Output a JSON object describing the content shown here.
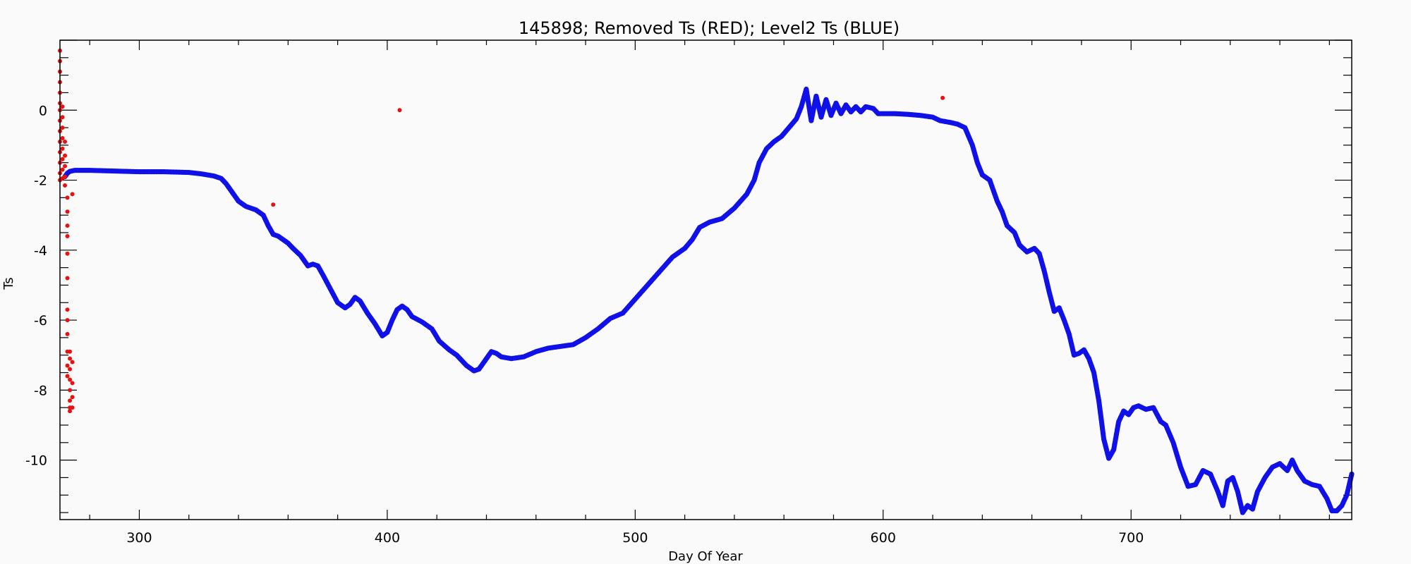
{
  "chart_data": {
    "type": "scatter",
    "title": "145898; Removed Ts (RED); Level2 Ts (BLUE)",
    "xlabel": "Day Of Year",
    "ylabel": "Ts",
    "xlim": [
      268,
      789
    ],
    "ylim": [
      -11.7,
      2.0
    ],
    "xticks": [
      300,
      400,
      500,
      600,
      700
    ],
    "yticks": [
      0,
      -2,
      -4,
      -6,
      -8,
      -10
    ],
    "grid": false,
    "legend": "none",
    "series": [
      {
        "color": "#1010e8",
        "points": [
          [
            270,
            -1.9
          ],
          [
            271,
            -1.8
          ],
          [
            272,
            -1.75
          ],
          [
            274,
            -1.72
          ],
          [
            276,
            -1.72
          ],
          [
            280,
            -1.72
          ],
          [
            285,
            -1.73
          ],
          [
            290,
            -1.74
          ],
          [
            295,
            -1.75
          ],
          [
            300,
            -1.76
          ],
          [
            305,
            -1.76
          ],
          [
            310,
            -1.76
          ],
          [
            315,
            -1.77
          ],
          [
            320,
            -1.78
          ],
          [
            325,
            -1.82
          ],
          [
            330,
            -1.88
          ],
          [
            333,
            -1.95
          ],
          [
            335,
            -2.1
          ],
          [
            337,
            -2.3
          ],
          [
            340,
            -2.6
          ],
          [
            343,
            -2.75
          ],
          [
            347,
            -2.85
          ],
          [
            350,
            -3.0
          ],
          [
            352,
            -3.3
          ],
          [
            354,
            -3.55
          ],
          [
            356,
            -3.6
          ],
          [
            358,
            -3.7
          ],
          [
            360,
            -3.8
          ],
          [
            362,
            -3.95
          ],
          [
            365,
            -4.15
          ],
          [
            368,
            -4.45
          ],
          [
            370,
            -4.4
          ],
          [
            372,
            -4.45
          ],
          [
            374,
            -4.7
          ],
          [
            377,
            -5.1
          ],
          [
            380,
            -5.5
          ],
          [
            383,
            -5.65
          ],
          [
            385,
            -5.55
          ],
          [
            387,
            -5.35
          ],
          [
            389,
            -5.45
          ],
          [
            392,
            -5.8
          ],
          [
            395,
            -6.1
          ],
          [
            398,
            -6.45
          ],
          [
            400,
            -6.35
          ],
          [
            402,
            -6.0
          ],
          [
            404,
            -5.7
          ],
          [
            406,
            -5.6
          ],
          [
            408,
            -5.7
          ],
          [
            410,
            -5.9
          ],
          [
            414,
            -6.05
          ],
          [
            418,
            -6.25
          ],
          [
            421,
            -6.6
          ],
          [
            425,
            -6.85
          ],
          [
            428,
            -7.0
          ],
          [
            432,
            -7.3
          ],
          [
            435,
            -7.45
          ],
          [
            437,
            -7.4
          ],
          [
            440,
            -7.1
          ],
          [
            442,
            -6.9
          ],
          [
            444,
            -6.95
          ],
          [
            446,
            -7.05
          ],
          [
            450,
            -7.1
          ],
          [
            455,
            -7.05
          ],
          [
            460,
            -6.9
          ],
          [
            465,
            -6.8
          ],
          [
            470,
            -6.75
          ],
          [
            475,
            -6.7
          ],
          [
            480,
            -6.5
          ],
          [
            485,
            -6.25
          ],
          [
            490,
            -5.95
          ],
          [
            495,
            -5.8
          ],
          [
            500,
            -5.4
          ],
          [
            505,
            -5.0
          ],
          [
            510,
            -4.6
          ],
          [
            515,
            -4.2
          ],
          [
            520,
            -3.95
          ],
          [
            523,
            -3.7
          ],
          [
            526,
            -3.35
          ],
          [
            530,
            -3.2
          ],
          [
            535,
            -3.1
          ],
          [
            540,
            -2.8
          ],
          [
            545,
            -2.4
          ],
          [
            548,
            -2.0
          ],
          [
            550,
            -1.5
          ],
          [
            553,
            -1.1
          ],
          [
            556,
            -0.9
          ],
          [
            559,
            -0.75
          ],
          [
            562,
            -0.5
          ],
          [
            565,
            -0.25
          ],
          [
            567,
            0.1
          ],
          [
            569,
            0.6
          ],
          [
            571,
            -0.3
          ],
          [
            573,
            0.4
          ],
          [
            575,
            -0.2
          ],
          [
            577,
            0.3
          ],
          [
            579,
            -0.15
          ],
          [
            581,
            0.2
          ],
          [
            583,
            -0.1
          ],
          [
            585,
            0.15
          ],
          [
            587,
            -0.05
          ],
          [
            589,
            0.1
          ],
          [
            591,
            -0.05
          ],
          [
            593,
            0.1
          ],
          [
            596,
            0.05
          ],
          [
            598,
            -0.1
          ],
          [
            600,
            -0.1
          ],
          [
            605,
            -0.1
          ],
          [
            610,
            -0.12
          ],
          [
            615,
            -0.15
          ],
          [
            620,
            -0.2
          ],
          [
            623,
            -0.3
          ],
          [
            627,
            -0.35
          ],
          [
            630,
            -0.4
          ],
          [
            633,
            -0.5
          ],
          [
            636,
            -1.0
          ],
          [
            638,
            -1.5
          ],
          [
            640,
            -1.85
          ],
          [
            643,
            -2.0
          ],
          [
            646,
            -2.6
          ],
          [
            648,
            -2.9
          ],
          [
            650,
            -3.3
          ],
          [
            653,
            -3.5
          ],
          [
            655,
            -3.85
          ],
          [
            658,
            -4.05
          ],
          [
            661,
            -3.95
          ],
          [
            663,
            -4.1
          ],
          [
            665,
            -4.6
          ],
          [
            667,
            -5.2
          ],
          [
            669,
            -5.75
          ],
          [
            671,
            -5.65
          ],
          [
            673,
            -6.0
          ],
          [
            675,
            -6.4
          ],
          [
            677,
            -7.0
          ],
          [
            679,
            -6.95
          ],
          [
            681,
            -6.85
          ],
          [
            683,
            -7.1
          ],
          [
            685,
            -7.5
          ],
          [
            687,
            -8.3
          ],
          [
            689,
            -9.4
          ],
          [
            691,
            -9.95
          ],
          [
            693,
            -9.7
          ],
          [
            695,
            -8.9
          ],
          [
            697,
            -8.6
          ],
          [
            699,
            -8.7
          ],
          [
            701,
            -8.5
          ],
          [
            703,
            -8.45
          ],
          [
            706,
            -8.55
          ],
          [
            709,
            -8.5
          ],
          [
            712,
            -8.9
          ],
          [
            714,
            -9.0
          ],
          [
            717,
            -9.5
          ],
          [
            720,
            -10.2
          ],
          [
            723,
            -10.75
          ],
          [
            726,
            -10.7
          ],
          [
            729,
            -10.3
          ],
          [
            732,
            -10.4
          ],
          [
            735,
            -10.9
          ],
          [
            737,
            -11.3
          ],
          [
            739,
            -10.6
          ],
          [
            741,
            -10.5
          ],
          [
            743,
            -10.9
          ],
          [
            745,
            -11.5
          ],
          [
            747,
            -11.3
          ],
          [
            749,
            -11.4
          ],
          [
            751,
            -10.9
          ],
          [
            754,
            -10.5
          ],
          [
            757,
            -10.2
          ],
          [
            760,
            -10.1
          ],
          [
            763,
            -10.3
          ],
          [
            765,
            -10.0
          ],
          [
            767,
            -10.3
          ],
          [
            770,
            -10.6
          ],
          [
            773,
            -10.7
          ],
          [
            776,
            -10.75
          ],
          [
            779,
            -11.1
          ],
          [
            781,
            -11.45
          ],
          [
            783,
            -11.45
          ],
          [
            785,
            -11.3
          ],
          [
            787,
            -11.0
          ],
          [
            789,
            -10.4
          ]
        ]
      },
      {
        "color": "#e81010",
        "points": [
          [
            268,
            1.7
          ],
          [
            268,
            1.4
          ],
          [
            268,
            1.1
          ],
          [
            268,
            0.8
          ],
          [
            268,
            0.5
          ],
          [
            268,
            0.2
          ],
          [
            268,
            0.0
          ],
          [
            268,
            -0.3
          ],
          [
            268,
            -0.6
          ],
          [
            268,
            -0.9
          ],
          [
            268,
            -1.2
          ],
          [
            268,
            -1.5
          ],
          [
            268,
            -1.8
          ],
          [
            268,
            -2.0
          ],
          [
            269,
            0.1
          ],
          [
            269,
            -0.2
          ],
          [
            269,
            -0.5
          ],
          [
            269,
            -0.8
          ],
          [
            269,
            -1.1
          ],
          [
            269,
            -1.4
          ],
          [
            269,
            -1.7
          ],
          [
            269,
            -1.95
          ],
          [
            270,
            -0.9
          ],
          [
            270,
            -1.3
          ],
          [
            270,
            -1.6
          ],
          [
            270,
            -1.9
          ],
          [
            270,
            -2.15
          ],
          [
            271,
            -2.5
          ],
          [
            271,
            -2.9
          ],
          [
            271,
            -3.3
          ],
          [
            271,
            -3.6
          ],
          [
            271,
            -4.1
          ],
          [
            271,
            -4.8
          ],
          [
            271,
            -5.7
          ],
          [
            271,
            -6.0
          ],
          [
            271,
            -6.4
          ],
          [
            271,
            -6.9
          ],
          [
            271,
            -7.3
          ],
          [
            271,
            -7.6
          ],
          [
            272,
            -6.9
          ],
          [
            272,
            -7.1
          ],
          [
            272,
            -7.4
          ],
          [
            272,
            -7.7
          ],
          [
            272,
            -8.0
          ],
          [
            272,
            -8.3
          ],
          [
            272,
            -8.5
          ],
          [
            272,
            -8.6
          ],
          [
            273,
            -2.4
          ],
          [
            273,
            -7.2
          ],
          [
            273,
            -7.8
          ],
          [
            273,
            -8.2
          ],
          [
            273,
            -8.5
          ],
          [
            354,
            -2.7
          ],
          [
            405,
            0.0
          ],
          [
            624,
            0.35
          ]
        ]
      }
    ]
  }
}
